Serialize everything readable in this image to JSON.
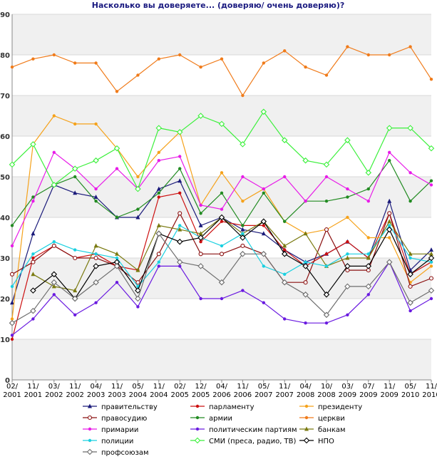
{
  "chart_data": {
    "type": "line",
    "title": "Насколько вы доверяете... (доверяю/ очень доверяю)?",
    "xlabel": "",
    "ylabel": "",
    "ylim": [
      0,
      90
    ],
    "yticks": [
      0,
      10,
      20,
      30,
      40,
      50,
      60,
      70,
      80,
      90
    ],
    "grid": true,
    "legend_position": "bottom",
    "categories": [
      [
        "02/",
        "2001"
      ],
      [
        "11/",
        "2001"
      ],
      [
        "03/",
        "2002"
      ],
      [
        "11/",
        "2002"
      ],
      [
        "04/",
        "2003"
      ],
      [
        "11/",
        "2003"
      ],
      [
        "05/",
        "2004"
      ],
      [
        "11/",
        "2004"
      ],
      [
        "02/",
        "2005"
      ],
      [
        "12/",
        "2005"
      ],
      [
        "04/",
        "2006"
      ],
      [
        "11/",
        "2006"
      ],
      [
        "05/",
        "2007"
      ],
      [
        "11/",
        "2007"
      ],
      [
        "04/",
        "2008"
      ],
      [
        "10/",
        "2008"
      ],
      [
        "03/",
        "2009"
      ],
      [
        "07/",
        "2009"
      ],
      [
        "11/",
        "2009"
      ],
      [
        "05/",
        "2010"
      ],
      [
        "11/",
        "2010"
      ]
    ],
    "x_positions": [
      0,
      1,
      2,
      3,
      4,
      5,
      6,
      7,
      8,
      9,
      10,
      11,
      12,
      13,
      14,
      15,
      16,
      17,
      18,
      19,
      20
    ],
    "series": [
      {
        "name": "правительству",
        "color": "#1a1a7a",
        "marker": "triangle",
        "x": [
          0,
          1,
          2,
          3,
          4,
          5,
          6,
          7,
          8,
          9,
          10,
          11,
          12,
          13,
          14,
          15,
          16,
          17,
          18,
          19,
          20
        ],
        "values": [
          19,
          36,
          48,
          46,
          45,
          40,
          40,
          47,
          49,
          38,
          40,
          37,
          36,
          32,
          29,
          31,
          34,
          30,
          44,
          27,
          32
        ]
      },
      {
        "name": "парламенту",
        "color": "#cc1010",
        "marker": "dot",
        "x": [
          0,
          1,
          2,
          3,
          4,
          5,
          6,
          7,
          8,
          9,
          10,
          11,
          12,
          13,
          14,
          15,
          16,
          17,
          18,
          19,
          20
        ],
        "values": [
          10,
          30,
          33,
          30,
          31,
          28,
          27,
          45,
          46,
          34,
          39,
          38,
          38,
          32,
          28,
          31,
          34,
          30,
          41,
          26,
          29
        ]
      },
      {
        "name": "президенту",
        "color": "#f5a21b",
        "marker": "dot",
        "x": [
          0,
          1,
          2,
          3,
          4,
          5,
          6,
          7,
          8,
          9,
          10,
          11,
          12,
          13,
          14,
          15,
          16,
          17,
          18,
          19,
          20
        ],
        "values": [
          15,
          58,
          65,
          63,
          63,
          57,
          50,
          56,
          61,
          43,
          51,
          44,
          47,
          39,
          36,
          37,
          40,
          35,
          35,
          24,
          28
        ]
      },
      {
        "name": "правосудию",
        "color": "#8b1010",
        "marker": "circle",
        "x": [
          0,
          1,
          2,
          3,
          4,
          5,
          6,
          7,
          8,
          9,
          10,
          11,
          12,
          13,
          14,
          15,
          16,
          17,
          18,
          19,
          20
        ],
        "values": [
          26,
          29,
          33,
          30,
          30,
          28,
          24,
          31,
          41,
          31,
          31,
          33,
          31,
          24,
          24,
          37,
          27,
          27,
          41,
          23,
          25
        ]
      },
      {
        "name": "армии",
        "color": "#228b22",
        "marker": "dot",
        "x": [
          0,
          1,
          2,
          3,
          4,
          5,
          6,
          7,
          8,
          9,
          10,
          11,
          12,
          13,
          14,
          15,
          16,
          17,
          18,
          19,
          20
        ],
        "values": [
          38,
          45,
          48,
          50,
          44,
          40,
          42,
          46,
          52,
          41,
          46,
          38,
          46,
          39,
          44,
          44,
          45,
          47,
          54,
          44,
          49
        ]
      },
      {
        "name": "церкви",
        "color": "#f07b1a",
        "marker": "dot",
        "x": [
          0,
          1,
          2,
          3,
          4,
          5,
          6,
          7,
          8,
          9,
          10,
          11,
          12,
          13,
          14,
          15,
          16,
          17,
          18,
          19,
          20
        ],
        "values": [
          77,
          79,
          80,
          78,
          78,
          71,
          75,
          79,
          80,
          77,
          79,
          70,
          78,
          81,
          77,
          75,
          82,
          80,
          80,
          82,
          74
        ]
      },
      {
        "name": "примарии",
        "color": "#e81ce8",
        "marker": "dot",
        "x": [
          0,
          1,
          2,
          3,
          4,
          5,
          6,
          7,
          8,
          9,
          10,
          11,
          12,
          13,
          14,
          15,
          16,
          17,
          18,
          19,
          20
        ],
        "values": [
          33,
          44,
          56,
          52,
          47,
          52,
          47,
          54,
          55,
          43,
          42,
          50,
          47,
          50,
          44,
          50,
          47,
          44,
          56,
          51,
          48
        ]
      },
      {
        "name": "политическим партиям",
        "color": "#6a1ae0",
        "marker": "dot",
        "x": [
          0,
          1,
          2,
          3,
          4,
          5,
          6,
          7,
          8,
          9,
          10,
          11,
          12,
          13,
          14,
          15,
          16,
          17,
          18,
          19,
          20
        ],
        "values": [
          11,
          15,
          21,
          16,
          19,
          24,
          18,
          28,
          28,
          20,
          20,
          22,
          19,
          15,
          14,
          14,
          16,
          21,
          29,
          17,
          20
        ]
      },
      {
        "name": "банкам",
        "color": "#7a7a10",
        "marker": "triangle",
        "x": [
          0,
          1,
          2,
          3,
          4,
          5,
          6,
          7,
          8,
          9,
          10,
          11,
          12,
          13,
          14,
          15,
          16,
          17,
          18,
          19,
          20
        ],
        "values": [
          null,
          26,
          23,
          22,
          33,
          31,
          27,
          38,
          37,
          36,
          40,
          36,
          39,
          33,
          36,
          28,
          30,
          30,
          39,
          31,
          31
        ]
      },
      {
        "name": "полиции",
        "color": "#1ad0e0",
        "marker": "dot",
        "x": [
          0,
          1,
          2,
          3,
          4,
          5,
          6,
          7,
          8,
          9,
          10,
          11,
          12,
          13,
          14,
          15,
          16,
          17,
          18,
          19,
          20
        ],
        "values": [
          23,
          31,
          34,
          32,
          31,
          30,
          23,
          29,
          38,
          35,
          33,
          36,
          28,
          26,
          29,
          28,
          31,
          31,
          38,
          30,
          29
        ]
      },
      {
        "name": "СМИ (преса, радио, ТВ)",
        "color": "#3cf03c",
        "marker": "diamond",
        "x": [
          0,
          1,
          2,
          3,
          4,
          5,
          6,
          7,
          8,
          9,
          10,
          11,
          12,
          13,
          14,
          15,
          16,
          17,
          18,
          19,
          20
        ],
        "values": [
          53,
          58,
          48,
          52,
          54,
          57,
          47,
          62,
          61,
          65,
          63,
          58,
          66,
          59,
          54,
          53,
          59,
          51,
          62,
          62,
          57
        ]
      },
      {
        "name": "НПО",
        "color": "#000000",
        "marker": "diamond",
        "x": [
          0,
          1,
          2,
          3,
          4,
          5,
          6,
          7,
          8,
          9,
          10,
          11,
          12,
          13,
          14,
          15,
          16,
          17,
          18,
          19,
          20
        ],
        "values": [
          null,
          22,
          26,
          20,
          28,
          29,
          22,
          36,
          34,
          35,
          40,
          35,
          39,
          31,
          28,
          21,
          28,
          28,
          37,
          26,
          30
        ]
      },
      {
        "name": "профсоюзам",
        "color": "#6e6e6e",
        "marker": "diamond",
        "x": [
          0,
          1,
          2,
          3,
          4,
          5,
          6,
          7,
          8,
          9,
          10,
          11,
          12,
          13,
          14,
          15,
          16,
          17,
          18,
          19,
          20
        ],
        "values": [
          14,
          17,
          24,
          20,
          24,
          28,
          20,
          36,
          29,
          28,
          24,
          31,
          31,
          24,
          21,
          16,
          23,
          23,
          29,
          19,
          22
        ]
      }
    ]
  }
}
